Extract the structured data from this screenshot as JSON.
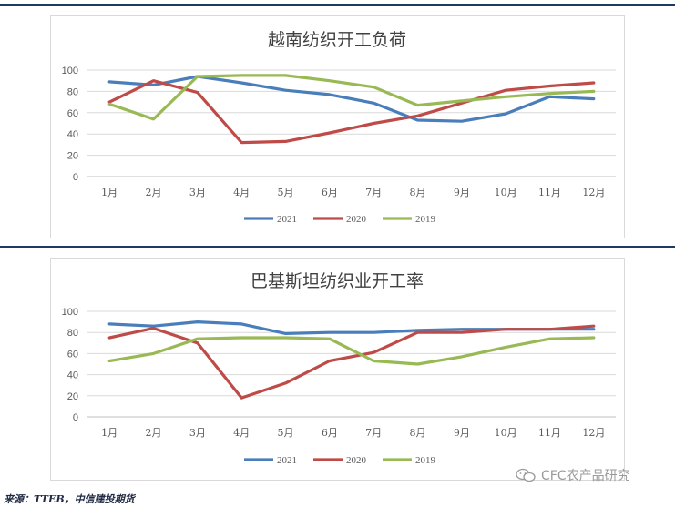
{
  "colors": {
    "2021": "#4a7ebb",
    "2020": "#be4b48",
    "2019": "#98b954",
    "grid": "#d9d9d9",
    "rule": "#1f3864"
  },
  "chart_data": [
    {
      "type": "line",
      "title": "越南纺织开工负荷",
      "categories": [
        "1月",
        "2月",
        "3月",
        "4月",
        "5月",
        "6月",
        "7月",
        "8月",
        "9月",
        "10月",
        "11月",
        "12月"
      ],
      "y_ticks": [
        "0",
        "20",
        "40",
        "60",
        "80",
        "100"
      ],
      "ylim": [
        0,
        100
      ],
      "grid": true,
      "legend_position": "bottom",
      "series": [
        {
          "name": "2021",
          "color": "#4a7ebb",
          "values": [
            89,
            86,
            94,
            88,
            81,
            77,
            69,
            53,
            52,
            59,
            75,
            73
          ]
        },
        {
          "name": "2020",
          "color": "#be4b48",
          "values": [
            70,
            90,
            79,
            32,
            33,
            41,
            50,
            57,
            69,
            81,
            85,
            88
          ]
        },
        {
          "name": "2019",
          "color": "#98b954",
          "values": [
            68,
            54,
            94,
            95,
            95,
            90,
            84,
            67,
            71,
            75,
            78,
            80
          ]
        }
      ]
    },
    {
      "type": "line",
      "title": "巴基斯坦纺织业开工率",
      "categories": [
        "1月",
        "2月",
        "3月",
        "4月",
        "5月",
        "6月",
        "7月",
        "8月",
        "9月",
        "10月",
        "11月",
        "12月"
      ],
      "y_ticks": [
        "0",
        "20",
        "40",
        "60",
        "80",
        "100"
      ],
      "ylim": [
        0,
        100
      ],
      "grid": true,
      "legend_position": "bottom",
      "series": [
        {
          "name": "2021",
          "color": "#4a7ebb",
          "values": [
            88,
            86,
            90,
            88,
            79,
            80,
            80,
            82,
            83,
            83,
            83,
            83
          ]
        },
        {
          "name": "2020",
          "color": "#be4b48",
          "values": [
            75,
            84,
            70,
            18,
            32,
            53,
            61,
            80,
            80,
            83,
            83,
            86
          ]
        },
        {
          "name": "2019",
          "color": "#98b954",
          "values": [
            53,
            60,
            74,
            75,
            75,
            74,
            53,
            50,
            57,
            66,
            74,
            75
          ]
        }
      ]
    }
  ],
  "footer": {
    "source": "来源：TTEB，中信建投期货",
    "watermark": "CFC农产品研究",
    "watermark_icon": "wechat-icon"
  }
}
